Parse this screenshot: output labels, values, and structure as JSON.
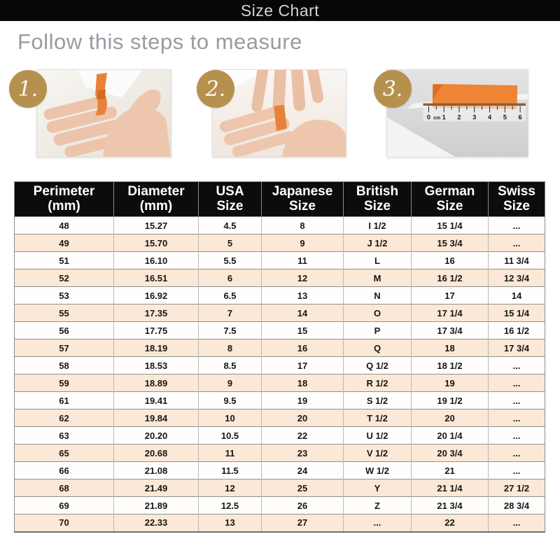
{
  "header": {
    "title": "Size Chart"
  },
  "intro": {
    "heading": "Follow this steps to measure"
  },
  "steps": [
    {
      "number": "1.",
      "description": "wrap a ribbon around the finger"
    },
    {
      "number": "2.",
      "description": "pinch the ribbon where it overlaps"
    },
    {
      "number": "3.",
      "description": "measure the ribbon length with a ruler"
    }
  ],
  "ruler_labels": [
    "0",
    "cm",
    "1",
    "2",
    "3",
    "4",
    "5",
    "6"
  ],
  "table": {
    "headers": [
      {
        "line1": "Perimeter",
        "line2": "(mm)"
      },
      {
        "line1": "Diameter",
        "line2": "(mm)"
      },
      {
        "line1": "USA",
        "line2": "Size"
      },
      {
        "line1": "Japanese",
        "line2": "Size"
      },
      {
        "line1": "British",
        "line2": "Size"
      },
      {
        "line1": "German",
        "line2": "Size"
      },
      {
        "line1": "Swiss",
        "line2": "Size"
      }
    ],
    "rows": [
      [
        "48",
        "15.27",
        "4.5",
        "8",
        "I 1/2",
        "15 1/4",
        "..."
      ],
      [
        "49",
        "15.70",
        "5",
        "9",
        "J 1/2",
        "15 3/4",
        "..."
      ],
      [
        "51",
        "16.10",
        "5.5",
        "11",
        "L",
        "16",
        "11 3/4"
      ],
      [
        "52",
        "16.51",
        "6",
        "12",
        "M",
        "16 1/2",
        "12 3/4"
      ],
      [
        "53",
        "16.92",
        "6.5",
        "13",
        "N",
        "17",
        "14"
      ],
      [
        "55",
        "17.35",
        "7",
        "14",
        "O",
        "17 1/4",
        "15 1/4"
      ],
      [
        "56",
        "17.75",
        "7.5",
        "15",
        "P",
        "17 3/4",
        "16 1/2"
      ],
      [
        "57",
        "18.19",
        "8",
        "16",
        "Q",
        "18",
        "17 3/4"
      ],
      [
        "58",
        "18.53",
        "8.5",
        "17",
        "Q 1/2",
        "18 1/2",
        "..."
      ],
      [
        "59",
        "18.89",
        "9",
        "18",
        "R 1/2",
        "19",
        "..."
      ],
      [
        "61",
        "19.41",
        "9.5",
        "19",
        "S 1/2",
        "19 1/2",
        "..."
      ],
      [
        "62",
        "19.84",
        "10",
        "20",
        "T 1/2",
        "20",
        "..."
      ],
      [
        "63",
        "20.20",
        "10.5",
        "22",
        "U 1/2",
        "20 1/4",
        "..."
      ],
      [
        "65",
        "20.68",
        "11",
        "23",
        "V 1/2",
        "20 3/4",
        "..."
      ],
      [
        "66",
        "21.08",
        "11.5",
        "24",
        "W 1/2",
        "21",
        "..."
      ],
      [
        "68",
        "21.49",
        "12",
        "25",
        "Y",
        "21 1/4",
        "27 1/2"
      ],
      [
        "69",
        "21.89",
        "12.5",
        "26",
        "Z",
        "21 3/4",
        "28 3/4"
      ],
      [
        "70",
        "22.33",
        "13",
        "27",
        "...",
        "22",
        "..."
      ]
    ]
  },
  "colors": {
    "title_bar_bg": "#070707",
    "heading_gray": "#9a9aa2",
    "badge_gold": "#b6914e",
    "ribbon_orange": "#e8823a",
    "row_alt_peach": "#fbe8d6",
    "table_header_bg": "#0c0c0c"
  }
}
